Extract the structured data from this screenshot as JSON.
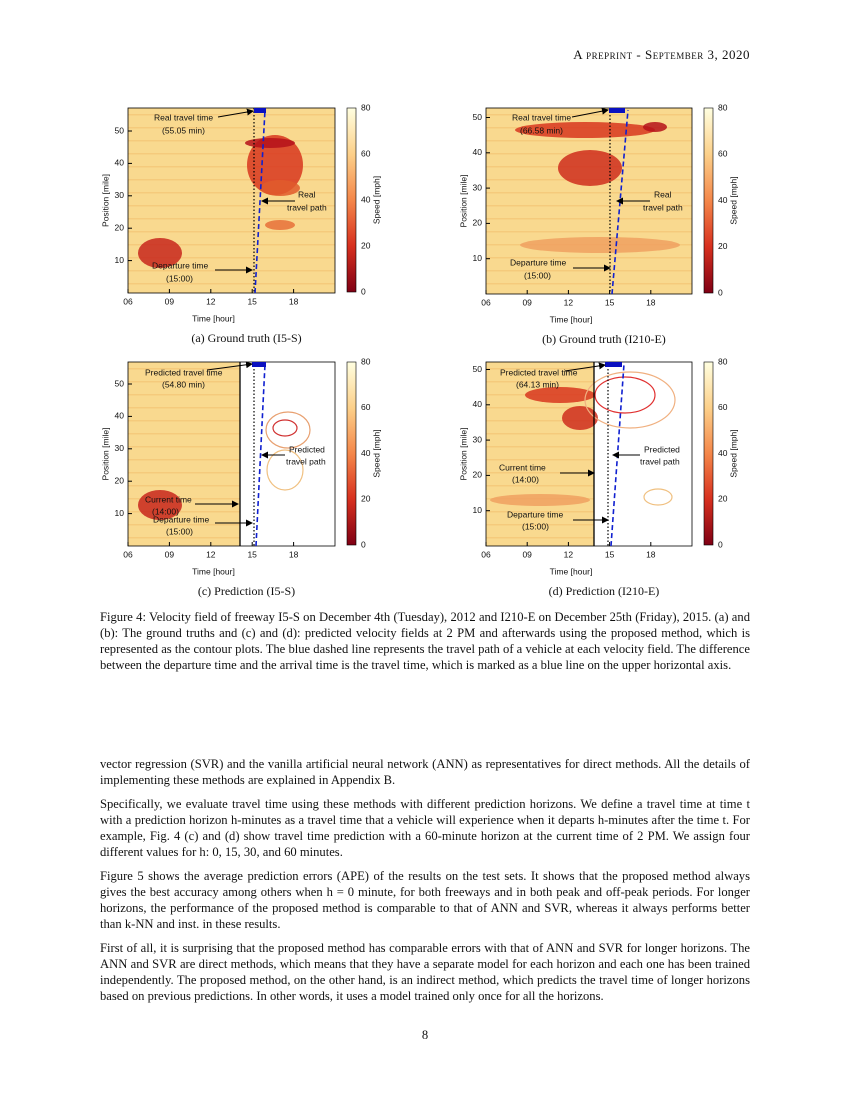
{
  "header": {
    "running_title": "A preprint - September 3, 2020"
  },
  "figure": {
    "panels": [
      {
        "caption": "(a) Ground truth (I5-S)",
        "x_label": "Time [hour]",
        "y_label": "Position [mile]",
        "colorbar_label": "Speed [mph]",
        "x_ticks": [
          "06",
          "09",
          "12",
          "15",
          "18"
        ],
        "y_ticks": [
          "10",
          "20",
          "30",
          "40",
          "50"
        ],
        "colorbar_ticks": [
          "0",
          "20",
          "40",
          "60",
          "80"
        ],
        "annotations": [
          "Real travel time",
          "(55.05 min)",
          "Real",
          "travel path",
          "Departure time",
          "(15:00)"
        ]
      },
      {
        "caption": "(b) Ground truth (I210-E)",
        "x_label": "Time [hour]",
        "y_label": "Position [mile]",
        "colorbar_label": "Speed [mph]",
        "x_ticks": [
          "06",
          "09",
          "12",
          "15",
          "18"
        ],
        "y_ticks": [
          "10",
          "20",
          "30",
          "40",
          "50"
        ],
        "colorbar_ticks": [
          "0",
          "20",
          "40",
          "60",
          "80"
        ],
        "annotations": [
          "Real travel time",
          "(66.58 min)",
          "Real",
          "travel path",
          "Departure time",
          "(15:00)"
        ]
      },
      {
        "caption": "(c) Prediction (I5-S)",
        "x_label": "Time [hour]",
        "y_label": "Position [mile]",
        "colorbar_label": "Speed [mph]",
        "x_ticks": [
          "06",
          "09",
          "12",
          "15",
          "18"
        ],
        "y_ticks": [
          "10",
          "20",
          "30",
          "40",
          "50"
        ],
        "colorbar_ticks": [
          "0",
          "20",
          "40",
          "60",
          "80"
        ],
        "annotations": [
          "Predicted travel time",
          "(54.80 min)",
          "Predicted",
          "travel path",
          "Current time",
          "(14:00)",
          "Departure time",
          "(15:00)"
        ]
      },
      {
        "caption": "(d) Prediction (I210-E)",
        "x_label": "Time [hour]",
        "y_label": "Position [mile]",
        "colorbar_label": "Speed [mph]",
        "x_ticks": [
          "06",
          "09",
          "12",
          "15",
          "18"
        ],
        "y_ticks": [
          "10",
          "20",
          "30",
          "40",
          "50"
        ],
        "colorbar_ticks": [
          "0",
          "20",
          "40",
          "60",
          "80"
        ],
        "annotations": [
          "Predicted travel time",
          "(64.13 min)",
          "Predicted",
          "travel path",
          "Current time",
          "(14:00)",
          "Departure time",
          "(15:00)"
        ]
      }
    ],
    "caption": "Figure 4: Velocity field of freeway I5-S on December 4th (Tuesday), 2012 and I210-E on December 25th (Friday), 2015. (a) and (b): The ground truths and (c) and (d): predicted velocity fields at 2 PM and afterwards using the proposed method, which is represented as the contour plots. The blue dashed line represents the travel path of a vehicle at each velocity field. The difference between the departure time and the arrival time is the travel time, which is marked as a blue line on the upper horizontal axis."
  },
  "body": {
    "paragraphs": [
      "vector regression (SVR) and the vanilla artificial neural network (ANN) as representatives for direct methods. All the details of implementing these methods are explained in Appendix B.",
      "Specifically, we evaluate travel time using these methods with different prediction horizons. We define a travel time at time t with a prediction horizon h-minutes as a travel time that a vehicle will experience when it departs h-minutes after the time t. For example, Fig. 4 (c) and (d) show travel time prediction with a 60-minute horizon at the current time of 2 PM. We assign four different values for h: 0, 15, 30, and 60 minutes.",
      "Figure 5 shows the average prediction errors (APE) of the results on the test sets. It shows that the proposed method always gives the best accuracy among others when h = 0 minute, for both freeways and in both peak and off-peak periods. For longer horizons, the performance of the proposed method is comparable to that of ANN and SVR, whereas it always performs better than k-NN and inst. in these results.",
      "First of all, it is surprising that the proposed method has comparable errors with that of ANN and SVR for longer horizons. The ANN and SVR are direct methods, which means that they have a separate model for each horizon and each one has been trained independently. The proposed method, on the other hand, is an indirect method, which predicts the travel time of longer horizons based on previous predictions. In other words, it uses a model trained only once for all the horizons."
    ]
  },
  "footer": {
    "page_number": "8"
  }
}
